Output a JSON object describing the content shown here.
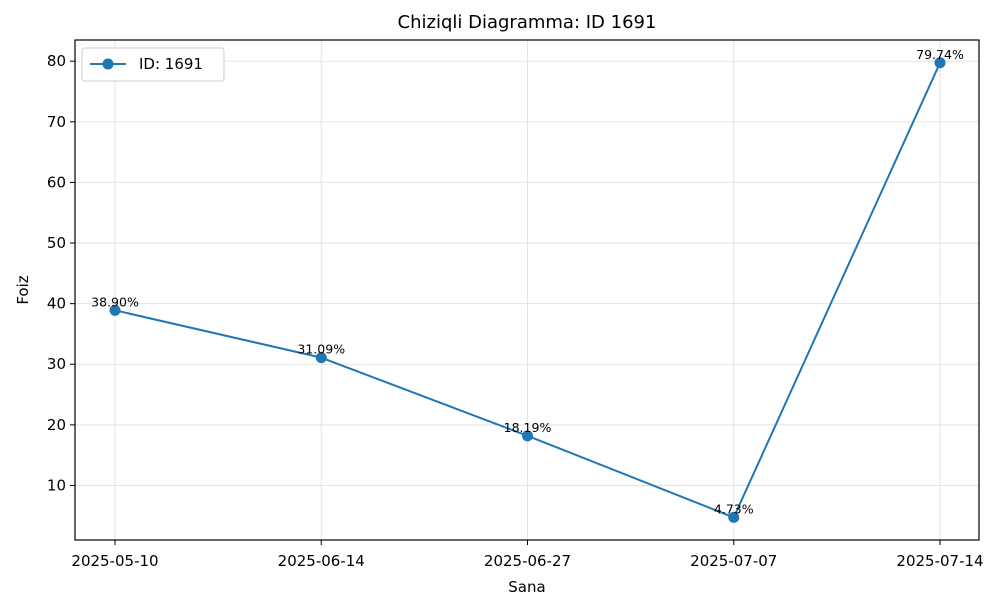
{
  "chart_data": {
    "type": "line",
    "title": "Chiziqli Diagramma: ID 1691",
    "xlabel": "Sana",
    "ylabel": "Foiz",
    "categories": [
      "2025-05-10",
      "2025-06-14",
      "2025-06-27",
      "2025-07-07",
      "2025-07-14"
    ],
    "series": [
      {
        "name": "ID: 1691",
        "values": [
          38.9,
          31.09,
          18.19,
          4.73,
          79.74
        ],
        "labels": [
          "38.90%",
          "31.09%",
          "18.19%",
          "4.73%",
          "79.74%"
        ],
        "color": "#1f77b4"
      }
    ],
    "yticks": [
      10,
      20,
      30,
      40,
      50,
      60,
      70,
      80
    ],
    "ylim": [
      1.0,
      83.5
    ],
    "grid": true,
    "legend_position": "top-left"
  }
}
